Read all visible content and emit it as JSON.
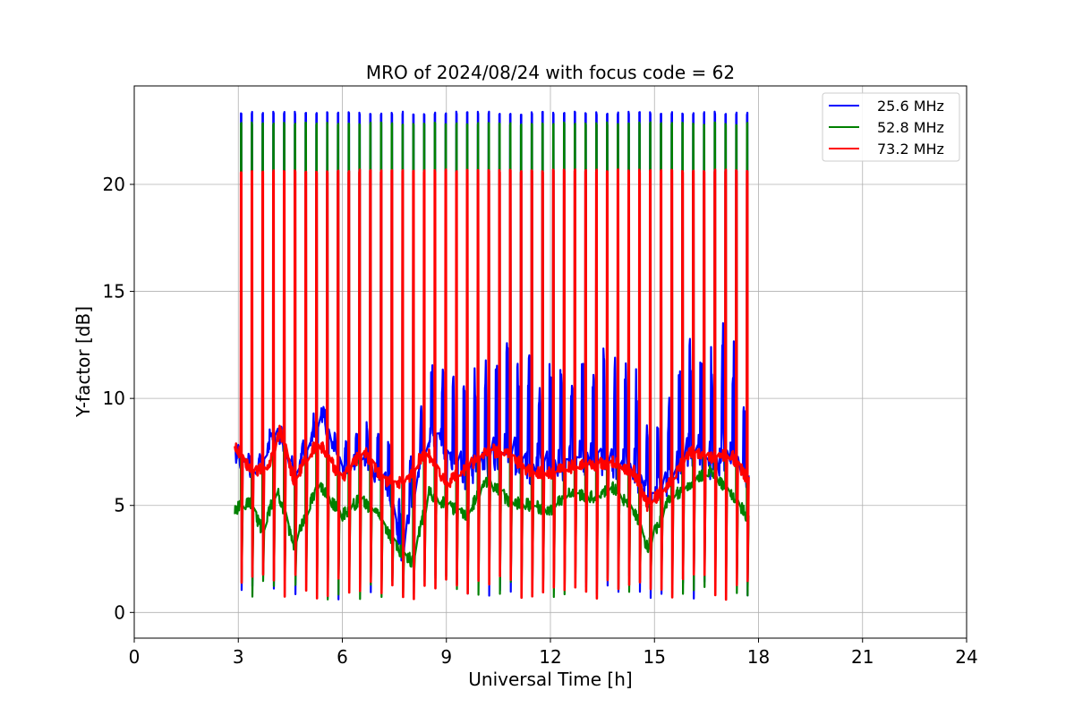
{
  "chart_data": {
    "type": "line",
    "title": "MRO of 2024/08/24 with focus code = 62",
    "xlabel": "Universal Time [h]",
    "ylabel": "Y-factor [dB]",
    "xlim": [
      0,
      24
    ],
    "ylim": [
      -1.2,
      24.6
    ],
    "x_ticks": [
      0,
      3,
      6,
      9,
      12,
      15,
      18,
      21,
      24
    ],
    "y_ticks": [
      0,
      5,
      10,
      15,
      20
    ],
    "grid": true,
    "legend_position": "top-right",
    "data_start_hour": 2.9,
    "data_end_hour": 17.8,
    "spike_count": 48,
    "series": [
      {
        "name": "25.6 MHz",
        "color": "#0000ff",
        "spike_peak": 23.4,
        "baseline_x": [
          2.9,
          3.5,
          4.1,
          4.6,
          5.4,
          6.0,
          6.6,
          7.3,
          7.7,
          8.2,
          8.6,
          9.0,
          9.6,
          10.2,
          10.8,
          11.4,
          12.0,
          12.6,
          13.2,
          13.8,
          14.4,
          14.8,
          15.4,
          16.0,
          16.6,
          17.2,
          17.8
        ],
        "baseline_y": [
          7.3,
          6.5,
          8.6,
          6.4,
          9.2,
          6.7,
          7.2,
          6.0,
          2.8,
          6.8,
          8.5,
          7.5,
          6.6,
          7.3,
          7.5,
          6.9,
          7.1,
          7.2,
          7.6,
          6.8,
          7.0,
          5.5,
          6.2,
          7.5,
          7.2,
          7.7,
          6.0
        ],
        "oscillation_amplitude": [
          0.5,
          0.5,
          0.6,
          0.5,
          0.6,
          0.8,
          1.6,
          2.3,
          2.0,
          2.5,
          3.0,
          3.6,
          4.2,
          4.5,
          4.6,
          4.5,
          4.3,
          4.2,
          4.4,
          4.8,
          4.5,
          3.0,
          3.6,
          4.8,
          4.7,
          5.5,
          1.0
        ]
      },
      {
        "name": "52.8 MHz",
        "color": "#008000",
        "spike_peak": 22.9,
        "baseline_x": [
          2.9,
          3.3,
          3.7,
          4.1,
          4.6,
          5.3,
          6.0,
          6.5,
          7.0,
          7.6,
          8.0,
          8.5,
          9.0,
          9.6,
          10.2,
          10.8,
          11.4,
          12.0,
          12.6,
          13.2,
          13.8,
          14.4,
          14.8,
          15.4,
          16.0,
          16.6,
          17.2,
          17.8
        ],
        "baseline_y": [
          4.8,
          5.2,
          3.8,
          5.8,
          3.2,
          6.0,
          4.5,
          5.3,
          4.6,
          3.0,
          2.4,
          5.6,
          5.0,
          4.6,
          6.2,
          5.2,
          5.0,
          4.8,
          5.6,
          5.4,
          5.8,
          4.8,
          3.0,
          5.2,
          6.0,
          6.6,
          5.6,
          4.2
        ],
        "oscillation_amplitude": [
          0.3,
          0.3,
          0.4,
          0.4,
          0.4,
          0.5,
          0.5,
          0.5,
          0.5,
          0.5,
          0.5,
          0.5,
          0.5,
          0.5,
          0.5,
          0.5,
          0.5,
          0.5,
          0.5,
          0.5,
          0.5,
          0.5,
          0.5,
          0.5,
          0.5,
          0.5,
          0.5,
          0.4
        ]
      },
      {
        "name": "73.2 MHz",
        "color": "#ff0000",
        "spike_peak": 20.7,
        "baseline_x": [
          2.9,
          3.4,
          3.9,
          4.2,
          4.6,
          5.3,
          6.0,
          6.6,
          7.2,
          7.8,
          8.4,
          9.0,
          9.6,
          10.2,
          10.8,
          11.4,
          12.0,
          12.6,
          13.2,
          13.8,
          14.4,
          14.8,
          15.4,
          16.0,
          16.6,
          17.2,
          17.8
        ],
        "baseline_y": [
          7.8,
          6.5,
          7.0,
          8.5,
          6.2,
          8.0,
          6.2,
          7.6,
          6.2,
          6.0,
          7.6,
          6.0,
          6.8,
          7.6,
          7.4,
          6.6,
          6.5,
          6.8,
          6.9,
          7.0,
          6.6,
          5.0,
          6.0,
          7.5,
          7.2,
          7.4,
          6.0
        ],
        "oscillation_amplitude": [
          0.3,
          0.3,
          0.3,
          0.3,
          0.3,
          0.3,
          0.3,
          0.3,
          0.3,
          0.3,
          0.3,
          0.3,
          0.3,
          0.3,
          0.3,
          0.3,
          0.3,
          0.3,
          0.3,
          0.3,
          0.3,
          0.3,
          0.3,
          0.3,
          0.3,
          0.3,
          0.3
        ]
      }
    ]
  }
}
